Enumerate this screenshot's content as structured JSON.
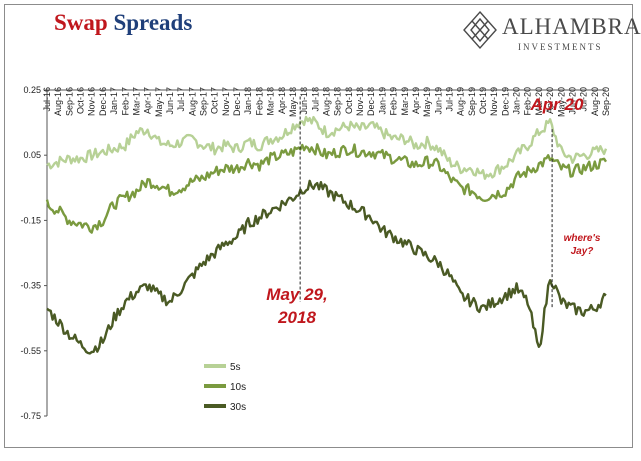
{
  "title": {
    "word1": "Swap",
    "word2": "Spreads"
  },
  "logo": {
    "name": "ALHAMBRA",
    "sub": "INVESTMENTS",
    "icon": "diamond-lattice-icon"
  },
  "colors": {
    "s5": "#b7d196",
    "s10": "#7a9a3f",
    "s30": "#4a5a24",
    "annotation": "#c0171d",
    "title_red": "#c0171d",
    "title_blue": "#1f3f7a"
  },
  "chart_data": {
    "type": "line",
    "title": "Swap Spreads",
    "xlabel": "",
    "ylabel": "",
    "ylim": [
      -0.75,
      0.25
    ],
    "yticks": [
      "0.25",
      "0.05",
      "-0.15",
      "-0.35",
      "-0.55",
      "-0.75"
    ],
    "x_tick_labels": [
      "Jul-16",
      "Aug-16",
      "Sep-16",
      "Oct-16",
      "Nov-16",
      "Dec-16",
      "Jan-17",
      "Feb-17",
      "Mar-17",
      "Apr-17",
      "May-17",
      "Jun-17",
      "Jul-17",
      "Aug-17",
      "Sep-17",
      "Oct-17",
      "Nov-17",
      "Dec-17",
      "Jan-18",
      "Feb-18",
      "Mar-18",
      "Apr-18",
      "May-18",
      "Jun-18",
      "Jul-18",
      "Aug-18",
      "Sep-18",
      "Oct-18",
      "Nov-18",
      "Dec-18",
      "Jan-19",
      "Feb-19",
      "Mar-19",
      "Apr-19",
      "May-19",
      "Jun-19",
      "Jul-19",
      "Aug-19",
      "Sep-19",
      "Oct-19",
      "Nov-19",
      "Dec-19",
      "Jan-20",
      "Feb-20",
      "Mar-20",
      "Apr-20",
      "May-20",
      "Jun-20",
      "Jul-20",
      "Aug-20",
      "Sep-20"
    ],
    "legend": {
      "placement": "lower-left"
    },
    "series": [
      {
        "name": "5s",
        "values": [
          0.02,
          0.03,
          0.04,
          0.04,
          0.05,
          0.06,
          0.07,
          0.08,
          0.12,
          0.13,
          0.09,
          0.08,
          0.09,
          0.1,
          0.08,
          0.07,
          0.08,
          0.07,
          0.09,
          0.08,
          0.1,
          0.11,
          0.14,
          0.16,
          0.15,
          0.12,
          0.13,
          0.14,
          0.13,
          0.14,
          0.12,
          0.1,
          0.1,
          0.08,
          0.09,
          0.07,
          0.03,
          0.01,
          0.01,
          -0.01,
          0.0,
          0.02,
          0.05,
          0.08,
          0.12,
          0.15,
          0.06,
          0.04,
          0.05,
          0.06,
          0.07
        ]
      },
      {
        "name": "10s",
        "values": [
          -0.1,
          -0.12,
          -0.15,
          -0.16,
          -0.17,
          -0.15,
          -0.1,
          -0.08,
          -0.06,
          -0.03,
          -0.04,
          -0.06,
          -0.05,
          -0.03,
          -0.02,
          0.0,
          0.01,
          0.01,
          0.03,
          0.02,
          0.04,
          0.05,
          0.06,
          0.08,
          0.07,
          0.05,
          0.06,
          0.07,
          0.06,
          0.06,
          0.05,
          0.04,
          0.03,
          0.02,
          0.03,
          0.02,
          -0.02,
          -0.05,
          -0.06,
          -0.08,
          -0.07,
          -0.06,
          -0.02,
          0.0,
          0.02,
          0.04,
          0.01,
          0.0,
          0.01,
          0.02,
          0.03
        ]
      },
      {
        "name": "30s",
        "values": [
          -0.42,
          -0.46,
          -0.5,
          -0.53,
          -0.55,
          -0.52,
          -0.45,
          -0.4,
          -0.37,
          -0.35,
          -0.38,
          -0.4,
          -0.36,
          -0.32,
          -0.28,
          -0.25,
          -0.22,
          -0.2,
          -0.16,
          -0.14,
          -0.12,
          -0.1,
          -0.08,
          -0.05,
          -0.04,
          -0.06,
          -0.08,
          -0.1,
          -0.12,
          -0.14,
          -0.18,
          -0.2,
          -0.22,
          -0.24,
          -0.26,
          -0.28,
          -0.32,
          -0.38,
          -0.4,
          -0.42,
          -0.4,
          -0.38,
          -0.36,
          -0.4,
          -0.55,
          -0.32,
          -0.4,
          -0.42,
          -0.43,
          -0.42,
          -0.38
        ]
      }
    ],
    "annotations": [
      {
        "text_lines": [
          "May 29,",
          "2018"
        ],
        "x": "Jun-18"
      },
      {
        "text_lines": [
          "Apr 20"
        ],
        "x": "Apr-20"
      },
      {
        "text_lines": [
          "where's",
          "Jay?"
        ],
        "x": "Jul-20"
      }
    ]
  }
}
